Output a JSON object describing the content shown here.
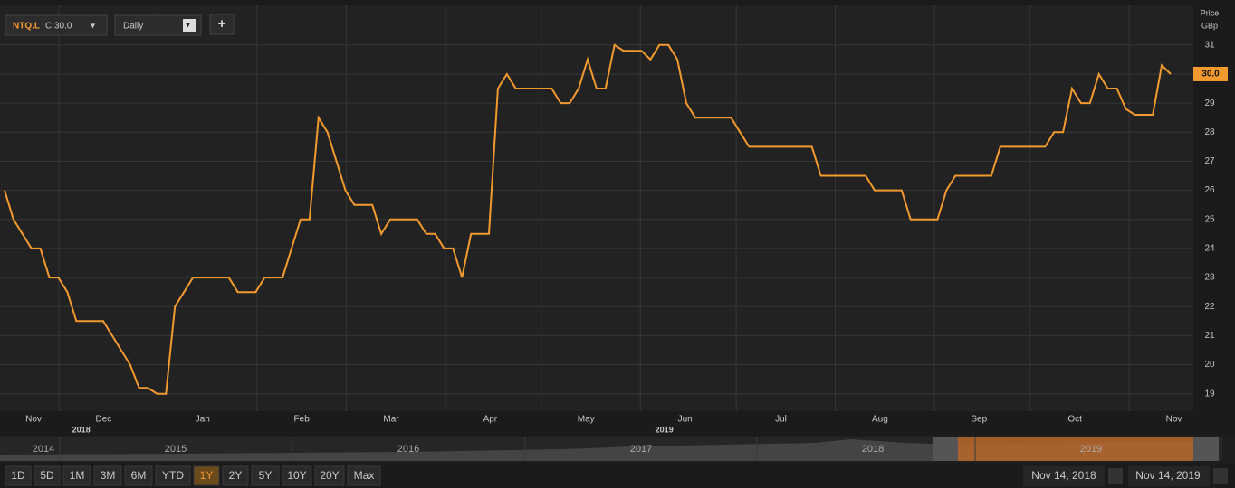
{
  "chart_data": {
    "type": "line",
    "symbol": "NTQ.L",
    "close_label": "C 30.0",
    "interval": "Daily",
    "add_button": "+",
    "axis_title": "Price",
    "axis_unit": "GBp",
    "color": "#f39a2f",
    "xlim": [
      "Nov 14, 2018",
      "Nov 14, 2019"
    ],
    "xticks": [
      {
        "value": "2018-11",
        "label": "Nov"
      },
      {
        "value": "2018-12",
        "label": "Dec"
      },
      {
        "value": "2019-01",
        "label": "Jan"
      },
      {
        "value": "2019-02",
        "label": "Feb"
      },
      {
        "value": "2019-03",
        "label": "Mar"
      },
      {
        "value": "2019-04",
        "label": "Apr"
      },
      {
        "value": "2019-05",
        "label": "May"
      },
      {
        "value": "2019-06",
        "label": "Jun"
      },
      {
        "value": "2019-07",
        "label": "Jul"
      },
      {
        "value": "2019-08",
        "label": "Aug"
      },
      {
        "value": "2019-09",
        "label": "Sep"
      },
      {
        "value": "2019-10",
        "label": "Oct"
      },
      {
        "value": "2019-11",
        "label": "Nov"
      }
    ],
    "year_labels": [
      "2018",
      "2019"
    ],
    "ylim": [
      18.4,
      32.3
    ],
    "yticks": [
      19,
      20,
      21,
      22,
      23,
      24,
      25,
      26,
      27,
      28,
      29,
      30,
      31
    ],
    "grid": true,
    "last_price": {
      "value": 30,
      "label": "30.0"
    },
    "values": [
      26,
      25,
      24.5,
      24,
      24,
      23,
      23,
      22.5,
      21.5,
      21.5,
      21.5,
      21.5,
      21,
      20.5,
      20,
      19.2,
      19.2,
      19,
      19,
      22,
      22.5,
      23,
      23,
      23,
      23,
      23,
      22.5,
      22.5,
      22.5,
      23,
      23,
      23,
      24,
      25,
      25,
      28.5,
      28,
      27,
      26,
      25.5,
      25.5,
      25.5,
      24.5,
      25,
      25,
      25,
      25,
      24.5,
      24.5,
      24,
      24,
      23,
      24.5,
      24.5,
      24.5,
      29.5,
      30,
      29.5,
      29.5,
      29.5,
      29.5,
      29.5,
      29,
      29,
      29.5,
      30.5,
      29.5,
      29.5,
      31,
      30.8,
      30.8,
      30.8,
      30.5,
      31,
      31,
      30.5,
      29,
      28.5,
      28.5,
      28.5,
      28.5,
      28.5,
      28,
      27.5,
      27.5,
      27.5,
      27.5,
      27.5,
      27.5,
      27.5,
      27.5,
      26.5,
      26.5,
      26.5,
      26.5,
      26.5,
      26.5,
      26,
      26,
      26,
      26,
      25,
      25,
      25,
      25,
      26,
      26.5,
      26.5,
      26.5,
      26.5,
      26.5,
      27.5,
      27.5,
      27.5,
      27.5,
      27.5,
      27.5,
      28,
      28,
      29.5,
      29,
      29,
      30,
      29.5,
      29.5,
      28.8,
      28.6,
      28.6,
      28.6,
      30.3,
      30
    ],
    "navigator_years": [
      "2014",
      "2015",
      "2016",
      "2017",
      "2018",
      "2019"
    ],
    "ranges": [
      "1D",
      "5D",
      "1M",
      "3M",
      "6M",
      "YTD",
      "1Y",
      "2Y",
      "5Y",
      "10Y",
      "20Y",
      "Max"
    ],
    "active_range": "1Y"
  }
}
